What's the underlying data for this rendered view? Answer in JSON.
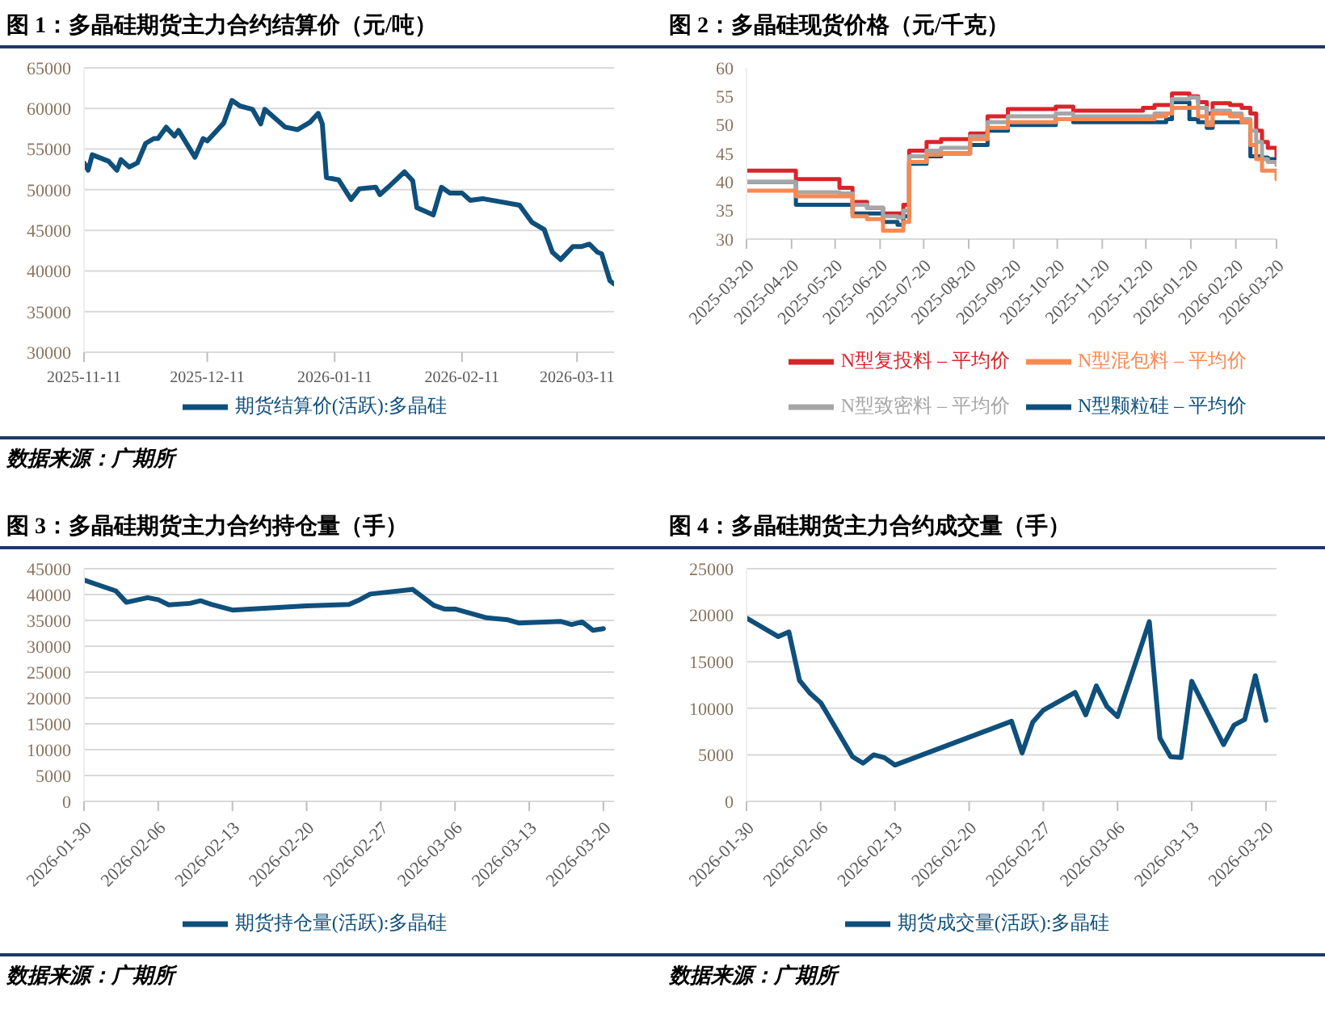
{
  "chart_data": [
    {
      "type": "line",
      "title": "图 1：多晶硅期货主力合约结算价（元/吨）",
      "annotations": [
        "数据来源：广期所"
      ],
      "grid": "y",
      "legend": "bottom",
      "x": [
        "2025-11-11",
        "2025-11-12",
        "2025-11-13",
        "2025-11-17",
        "2025-11-19",
        "2025-11-20",
        "2025-11-22",
        "2025-11-24",
        "2025-11-26",
        "2025-11-28",
        "2025-11-29",
        "2025-12-01",
        "2025-12-03",
        "2025-12-04",
        "2025-12-08",
        "2025-12-10",
        "2025-12-11",
        "2025-12-15",
        "2025-12-17",
        "2025-12-19",
        "2025-12-22",
        "2025-12-24",
        "2025-12-25",
        "2025-12-30",
        "2026-01-02",
        "2026-01-05",
        "2026-01-07",
        "2026-01-08",
        "2026-01-09",
        "2026-01-12",
        "2026-01-15",
        "2026-01-17",
        "2026-01-21",
        "2026-01-22",
        "2026-01-24",
        "2026-01-28",
        "2026-01-30",
        "2026-01-31",
        "2026-02-04",
        "2026-02-06",
        "2026-02-08",
        "2026-02-11",
        "2026-02-13",
        "2026-02-16",
        "2026-02-25",
        "2026-02-26",
        "2026-02-28",
        "2026-03-03",
        "2026-03-05",
        "2026-03-07",
        "2026-03-10",
        "2026-03-12",
        "2026-03-14",
        "2026-03-16",
        "2026-03-17",
        "2026-03-19",
        "2026-03-20"
      ],
      "series": [
        {
          "name": "期货结算价(活跃):多晶硅",
          "color": "#0f4f7b",
          "values": [
            53300,
            52400,
            54300,
            53500,
            52400,
            53700,
            52800,
            53300,
            55700,
            56300,
            56300,
            57700,
            56600,
            57300,
            54000,
            56300,
            56000,
            58200,
            61000,
            60300,
            59900,
            58100,
            59900,
            57700,
            57400,
            58300,
            59400,
            58100,
            51500,
            51200,
            48800,
            50100,
            50300,
            49400,
            50300,
            52200,
            51100,
            47800,
            46900,
            50300,
            49600,
            49600,
            48700,
            48900,
            48100,
            47400,
            46000,
            45100,
            42300,
            41400,
            43000,
            43000,
            43300,
            42300,
            42100,
            38800,
            38400
          ]
        }
      ],
      "xlim": [
        "2025-11-11",
        "2026-03-20"
      ],
      "xticks": [
        "2025-11-11",
        "2025-12-11",
        "2026-01-11",
        "2026-02-11",
        "2026-03-11"
      ],
      "ylim": [
        30000,
        65000
      ],
      "yticks": [
        30000,
        35000,
        40000,
        45000,
        50000,
        55000,
        60000,
        65000
      ]
    },
    {
      "type": "step",
      "title": "图 2：多晶硅现货价格（元/千克）",
      "grid": false,
      "legend": "bottom",
      "x": [
        "2025-03-20",
        "2025-04-23",
        "2025-05-23",
        "2025-06-01",
        "2025-06-11",
        "2025-06-22",
        "2025-07-02",
        "2025-07-06",
        "2025-07-10",
        "2025-07-22",
        "2025-08-01",
        "2025-08-21",
        "2025-09-02",
        "2025-09-16",
        "2025-10-19",
        "2025-10-31",
        "2025-12-18",
        "2025-12-26",
        "2026-01-03",
        "2026-01-07",
        "2026-01-19",
        "2026-01-25",
        "2026-01-31",
        "2026-02-04",
        "2026-02-16",
        "2026-02-24",
        "2026-03-02",
        "2026-03-06",
        "2026-03-10",
        "2026-03-14",
        "2026-03-20"
      ],
      "series": [
        {
          "name": "N型颗粒硅 – 平均价",
          "color": "#0f4f7b",
          "values": [
            40,
            36,
            36,
            34.5,
            34.5,
            33,
            32.5,
            34,
            43.2,
            44.5,
            45,
            46.5,
            49,
            50,
            51,
            50.5,
            50.5,
            50.5,
            51,
            54,
            51,
            50.5,
            49.5,
            50.5,
            50.5,
            50.5,
            44.5,
            44.5,
            44.3,
            44,
            43.5
          ]
        },
        {
          "name": "N型复投料 – 平均价",
          "color": "#d9242b",
          "values": [
            42,
            40.5,
            39,
            36.5,
            35.5,
            34.5,
            34.5,
            36,
            45.5,
            47,
            47.5,
            48.5,
            51.5,
            52.8,
            53.2,
            52.5,
            53,
            53.5,
            53.5,
            55.5,
            55,
            54,
            52,
            53.8,
            53.5,
            53,
            52,
            49,
            47,
            46,
            44.5
          ]
        },
        {
          "name": "N型致密料 – 平均价",
          "color": "#a6a6a6",
          "values": [
            40,
            38.2,
            38,
            36,
            35.5,
            34,
            33.8,
            35,
            44.5,
            45.5,
            46,
            48,
            50.5,
            51.5,
            52,
            51.5,
            51.5,
            52,
            52,
            54.5,
            54.8,
            53,
            50.5,
            52.5,
            52,
            51,
            49,
            47,
            44,
            43.5,
            43
          ]
        },
        {
          "name": "N型混包料 – 平均价",
          "color": "#f68a52",
          "values": [
            38.5,
            37.5,
            37.5,
            34,
            33.5,
            31.5,
            31.5,
            33,
            43.5,
            44.8,
            45,
            47.5,
            49.5,
            50.5,
            51,
            51,
            51,
            51.5,
            52,
            53,
            53,
            51.5,
            50,
            52,
            51.5,
            50.5,
            46.5,
            44,
            42,
            42,
            40.5
          ]
        }
      ],
      "xlim": [
        "2025-03-20",
        "2026-03-20"
      ],
      "xticks": [
        "2025-03-20",
        "2025-04-20",
        "2025-05-20",
        "2025-06-20",
        "2025-07-20",
        "2025-08-20",
        "2025-09-20",
        "2025-10-20",
        "2025-11-20",
        "2025-12-20",
        "2026-01-20",
        "2026-02-20",
        "2026-03-20"
      ],
      "ylim": [
        30,
        60
      ],
      "yticks": [
        30,
        35,
        40,
        45,
        50,
        55,
        60
      ]
    },
    {
      "type": "line",
      "title": "图 3：多晶硅期货主力合约持仓量（手）",
      "annotations": [
        "数据来源：广期所"
      ],
      "grid": "y",
      "legend": "bottom",
      "x": [
        "2026-01-30",
        "2026-02-02",
        "2026-02-03",
        "2026-02-05",
        "2026-02-06",
        "2026-02-07",
        "2026-02-09",
        "2026-02-10",
        "2026-02-11",
        "2026-02-13",
        "2026-02-20",
        "2026-02-24",
        "2026-02-25",
        "2026-02-26",
        "2026-03-02",
        "2026-03-04",
        "2026-03-05",
        "2026-03-06",
        "2026-03-09",
        "2026-03-11",
        "2026-03-12",
        "2026-03-16",
        "2026-03-17",
        "2026-03-18",
        "2026-03-19",
        "2026-03-20"
      ],
      "series": [
        {
          "name": "期货持仓量(活跃):多晶硅",
          "color": "#0f4f7b",
          "values": [
            42800,
            40700,
            38500,
            39400,
            39000,
            38000,
            38300,
            38800,
            38100,
            37000,
            37800,
            38100,
            39000,
            40100,
            41000,
            37900,
            37200,
            37200,
            35500,
            35100,
            34500,
            34800,
            34200,
            34700,
            33100,
            33400
          ]
        }
      ],
      "xlim": [
        "2026-01-30",
        "2026-03-21"
      ],
      "xticks": [
        "2026-01-30",
        "2026-02-06",
        "2026-02-13",
        "2026-02-20",
        "2026-02-27",
        "2026-03-06",
        "2026-03-13",
        "2026-03-20"
      ],
      "ylim": [
        0,
        45000
      ],
      "yticks": [
        0,
        5000,
        10000,
        15000,
        20000,
        25000,
        30000,
        35000,
        40000,
        45000
      ]
    },
    {
      "type": "line",
      "title": "图 4：多晶硅期货主力合约成交量（手）",
      "annotations": [
        "数据来源：广期所"
      ],
      "grid": "y",
      "legend": "bottom",
      "x": [
        "2026-01-30",
        "2026-02-02",
        "2026-02-03",
        "2026-02-04",
        "2026-02-05",
        "2026-02-06",
        "2026-02-09",
        "2026-02-10",
        "2026-02-11",
        "2026-02-12",
        "2026-02-13",
        "2026-02-24",
        "2026-02-25",
        "2026-02-26",
        "2026-02-27",
        "2026-03-02",
        "2026-03-03",
        "2026-03-04",
        "2026-03-05",
        "2026-03-06",
        "2026-03-09",
        "2026-03-10",
        "2026-03-11",
        "2026-03-12",
        "2026-03-13",
        "2026-03-16",
        "2026-03-17",
        "2026-03-18",
        "2026-03-19",
        "2026-03-20"
      ],
      "series": [
        {
          "name": "期货成交量(活跃):多晶硅",
          "color": "#0f4f7b",
          "values": [
            19700,
            17700,
            18200,
            13000,
            11600,
            10600,
            4800,
            4100,
            5000,
            4700,
            3900,
            8600,
            5200,
            8500,
            9800,
            11700,
            9300,
            12400,
            10200,
            9100,
            19300,
            6800,
            4800,
            4700,
            12900,
            6100,
            8200,
            8800,
            13500,
            8700
          ]
        }
      ],
      "xlim": [
        "2026-01-30",
        "2026-03-21"
      ],
      "xticks": [
        "2026-01-30",
        "2026-02-06",
        "2026-02-13",
        "2026-02-20",
        "2026-02-27",
        "2026-03-06",
        "2026-03-13",
        "2026-03-20"
      ],
      "ylim": [
        0,
        25000
      ],
      "yticks": [
        0,
        5000,
        10000,
        15000,
        20000,
        25000
      ]
    }
  ]
}
